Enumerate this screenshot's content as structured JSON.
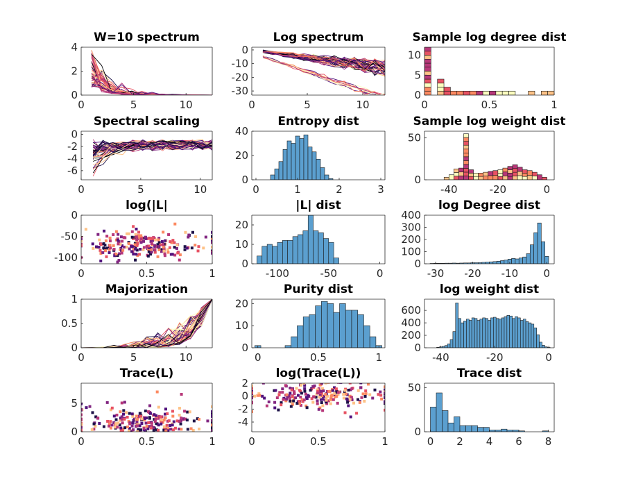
{
  "palette": [
    "#000004",
    "#1d1147",
    "#51127c",
    "#822681",
    "#b73779",
    "#e75263",
    "#fc8961",
    "#fec287",
    "#fcfdbf"
  ],
  "bar_color": "#5b9fcf",
  "chart_data": [
    {
      "id": "p1",
      "type": "line",
      "title": "W=10 spectrum",
      "xlim": [
        0,
        12.5
      ],
      "ylim": [
        0,
        4
      ],
      "xticks": [
        0,
        5,
        10
      ],
      "yticks": [
        0,
        2,
        4
      ],
      "n_series": 60,
      "x_start": 1,
      "x_end": 12.5,
      "peak_range": [
        0.6,
        3.9
      ],
      "decay": [
        0.35,
        0.9
      ]
    },
    {
      "id": "p2",
      "type": "line",
      "title": "Log spectrum",
      "xlim": [
        0,
        12
      ],
      "ylim": [
        -33,
        2
      ],
      "xticks": [
        0,
        5,
        10
      ],
      "yticks": [
        0,
        -10,
        -20,
        -30
      ],
      "n_series": 60,
      "x_start": 1,
      "x_end": 12
    },
    {
      "id": "p3",
      "type": "bar",
      "title": "Sample log degree dist",
      "xlim": [
        0,
        1
      ],
      "ylim": [
        0,
        12
      ],
      "xticks": [
        0,
        0.5,
        1
      ],
      "yticks": [
        0,
        5,
        10
      ],
      "categories": [
        0.025,
        0.075,
        0.125,
        0.175,
        0.225,
        0.275,
        0.325,
        0.375,
        0.425,
        0.475,
        0.525,
        0.575,
        0.625,
        0.675,
        0.725,
        0.775,
        0.825,
        0.875,
        0.925,
        0.975
      ],
      "values": [
        12,
        0,
        4,
        2,
        1,
        1,
        1,
        1,
        1,
        1,
        1,
        1,
        1,
        1,
        0,
        0,
        1,
        0,
        1,
        1
      ]
    },
    {
      "id": "p4",
      "type": "line",
      "title": "Spectral scaling",
      "xlim": [
        0,
        11
      ],
      "ylim": [
        -7.5,
        0.5
      ],
      "xticks": [
        0,
        5,
        10
      ],
      "yticks": [
        0,
        -2,
        -4,
        -6
      ],
      "n_series": 60,
      "x_start": 1,
      "x_end": 11
    },
    {
      "id": "p5",
      "type": "bar",
      "title": "Entropy dist",
      "xlim": [
        -0.1,
        3.1
      ],
      "ylim": [
        0,
        40
      ],
      "xticks": [
        0,
        1,
        2,
        3
      ],
      "yticks": [
        0,
        20,
        40
      ],
      "categories": [
        0.4,
        0.5,
        0.6,
        0.7,
        0.8,
        0.9,
        1.0,
        1.1,
        1.2,
        1.3,
        1.4,
        1.5,
        1.6,
        1.7,
        1.8
      ],
      "values": [
        4,
        9,
        15,
        25,
        32,
        30,
        36,
        34,
        37,
        27,
        23,
        17,
        10,
        4,
        1
      ]
    },
    {
      "id": "p6",
      "type": "bar",
      "title": "Sample log weight dist",
      "xlim": [
        -50,
        3
      ],
      "ylim": [
        0,
        58
      ],
      "xticks": [
        -40,
        -20,
        0
      ],
      "yticks": [
        0,
        50
      ],
      "categories": [
        -41,
        -39,
        -37,
        -35,
        -33,
        -31,
        -29,
        -27,
        -25,
        -23,
        -21,
        -19,
        -17,
        -15,
        -13,
        -11,
        -9,
        -7,
        -5,
        -3,
        -1
      ],
      "values": [
        3,
        6,
        13,
        14,
        55,
        12,
        8,
        8,
        9,
        10,
        11,
        12,
        14,
        16,
        18,
        15,
        12,
        11,
        9,
        6,
        3
      ]
    },
    {
      "id": "p7",
      "type": "scatter",
      "title": "log(|L|",
      "xlim": [
        0,
        1
      ],
      "ylim": [
        -115,
        0
      ],
      "xticks": [
        0,
        0.5,
        1
      ],
      "yticks": [
        0,
        -50,
        -100
      ],
      "n_points": 220,
      "y_center": -72,
      "y_spread": 18
    },
    {
      "id": "p8",
      "type": "bar",
      "title": "|L| dist",
      "xlim": [
        -125,
        5
      ],
      "ylim": [
        0,
        25
      ],
      "xticks": [
        -100,
        -50,
        0
      ],
      "yticks": [
        0,
        10,
        20
      ],
      "categories": [
        -117.5,
        -112.5,
        -107.5,
        -102.5,
        -97.5,
        -92.5,
        -87.5,
        -82.5,
        -77.5,
        -72.5,
        -67.5,
        -62.5,
        -57.5,
        -52.5,
        -47.5,
        -42.5,
        -37.5,
        -32.5,
        -27.5,
        -22.5,
        -17.5,
        -12.5,
        -7.5,
        -2.5
      ],
      "values": [
        4,
        9,
        10,
        9,
        11,
        12,
        12,
        14,
        15,
        17,
        25,
        17,
        16,
        13,
        11,
        3,
        0,
        0,
        0,
        0,
        0,
        0,
        0,
        0
      ]
    },
    {
      "id": "p9",
      "type": "bar",
      "title": "log Degree dist",
      "xlim": [
        -33,
        2
      ],
      "ylim": [
        0,
        400
      ],
      "xticks": [
        -30,
        -20,
        -10,
        0
      ],
      "yticks": [
        0,
        100,
        200,
        300,
        400
      ],
      "categories": [
        -31,
        -30,
        -29,
        -28,
        -27,
        -26,
        -25,
        -24,
        -23,
        -22,
        -21,
        -20,
        -19,
        -18,
        -17,
        -16,
        -15,
        -14,
        -13,
        -12,
        -11,
        -10,
        -9,
        -8,
        -7,
        -6,
        -5,
        -4,
        -3,
        -2,
        -1,
        0
      ],
      "values": [
        3,
        4,
        4,
        4,
        5,
        5,
        6,
        5,
        6,
        7,
        7,
        9,
        9,
        10,
        12,
        14,
        16,
        18,
        21,
        26,
        31,
        38,
        44,
        40,
        48,
        56,
        83,
        156,
        256,
        336,
        182,
        61
      ]
    },
    {
      "id": "p10",
      "type": "line",
      "title": "Majorization",
      "xlim": [
        0,
        12.5
      ],
      "ylim": [
        0,
        1
      ],
      "xticks": [
        0,
        5,
        10
      ],
      "yticks": [
        0,
        0.5,
        1
      ],
      "n_series": 60,
      "x_start": 0,
      "x_end": 12.5
    },
    {
      "id": "p11",
      "type": "bar",
      "title": "Purity dist",
      "xlim": [
        -0.05,
        1.05
      ],
      "ylim": [
        0,
        22
      ],
      "xticks": [
        0,
        0.5,
        1
      ],
      "yticks": [
        0,
        10,
        20
      ],
      "categories": [
        0.0,
        0.05,
        0.1,
        0.15,
        0.2,
        0.25,
        0.3,
        0.35,
        0.4,
        0.45,
        0.5,
        0.55,
        0.6,
        0.65,
        0.7,
        0.75,
        0.8,
        0.85,
        0.9,
        0.95,
        1.0
      ],
      "values": [
        1,
        0,
        0,
        0,
        0,
        1,
        5,
        10,
        14,
        15,
        19,
        21,
        20,
        16,
        20,
        17,
        17,
        15,
        10,
        5,
        1
      ]
    },
    {
      "id": "p12",
      "type": "bar",
      "title": "log weight dist",
      "xlim": [
        -46,
        2
      ],
      "ylim": [
        0,
        780
      ],
      "xticks": [
        -40,
        -20,
        0
      ],
      "yticks": [
        0,
        200,
        400,
        600
      ],
      "categories": [
        -41,
        -40,
        -39,
        -38,
        -37,
        -36,
        -35,
        -34,
        -33,
        -32,
        -31,
        -30,
        -29,
        -28,
        -27,
        -26,
        -25,
        -24,
        -23,
        -22,
        -21,
        -20,
        -19,
        -18,
        -17,
        -16,
        -15,
        -14,
        -13,
        -12,
        -11,
        -10,
        -9,
        -8,
        -7,
        -6,
        -5,
        -4,
        -3,
        -2,
        -1,
        0
      ],
      "values": [
        8,
        14,
        22,
        36,
        62,
        130,
        260,
        720,
        470,
        400,
        430,
        460,
        440,
        480,
        470,
        440,
        460,
        480,
        470,
        440,
        480,
        490,
        470,
        460,
        480,
        500,
        520,
        510,
        470,
        500,
        480,
        440,
        460,
        420,
        400,
        380,
        320,
        210,
        90,
        40,
        15,
        6
      ]
    },
    {
      "id": "p13",
      "type": "scatter",
      "title": "Trace(L)",
      "xlim": [
        0,
        1
      ],
      "ylim": [
        0,
        8.5
      ],
      "xticks": [
        0,
        0.5,
        1
      ],
      "yticks": [
        0,
        5
      ],
      "n_points": 220,
      "y_center": 1.6,
      "y_spread": 1.5
    },
    {
      "id": "p14",
      "type": "scatter",
      "title": "log(Trace(L))",
      "xlim": [
        0,
        1
      ],
      "ylim": [
        -5.5,
        2
      ],
      "xticks": [
        0,
        0.5,
        1
      ],
      "yticks": [
        2,
        0,
        -2,
        -4
      ],
      "n_points": 220,
      "y_center": 0.2,
      "y_spread": 1.1
    },
    {
      "id": "p15",
      "type": "bar",
      "title": "Trace dist",
      "xlim": [
        -0.4,
        8.4
      ],
      "ylim": [
        0,
        55
      ],
      "xticks": [
        0,
        2,
        4,
        6,
        8
      ],
      "yticks": [
        0,
        50
      ],
      "categories": [
        0.2,
        0.6,
        1.0,
        1.4,
        1.8,
        2.2,
        2.6,
        3.0,
        3.4,
        3.8,
        4.2,
        4.6,
        5.0,
        5.4,
        5.8,
        6.2,
        6.6,
        7.0,
        7.4,
        7.8
      ],
      "values": [
        28,
        44,
        24,
        10,
        17,
        7,
        7,
        7,
        5,
        5,
        2,
        2,
        3,
        2,
        2,
        1,
        0,
        0,
        0,
        1
      ]
    }
  ]
}
